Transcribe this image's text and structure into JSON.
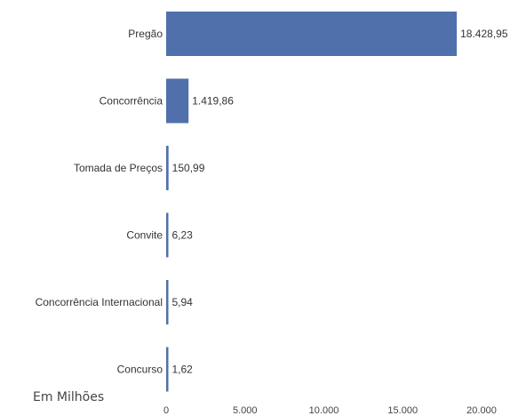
{
  "chart_data": {
    "type": "bar",
    "orientation": "horizontal",
    "categories": [
      "Pregão",
      "Concorrência",
      "Tomada de Preços",
      "Convite",
      "Concorrência Internacional",
      "Concurso"
    ],
    "values": [
      18428.95,
      1419.86,
      150.99,
      6.23,
      5.94,
      1.62
    ],
    "value_labels": [
      "18.428,95",
      "1.419,86",
      "150,99",
      "6,23",
      "5,94",
      "1,62"
    ],
    "xlim": [
      0,
      20000
    ],
    "xticks": [
      0,
      5000,
      10000,
      15000,
      20000
    ],
    "xtick_labels": [
      "0",
      "5.000",
      "10.000",
      "15.000",
      "20.000"
    ],
    "unit_label": "Em Milhões",
    "bar_color": "#4f70aa",
    "grid": false,
    "legend": "none"
  }
}
